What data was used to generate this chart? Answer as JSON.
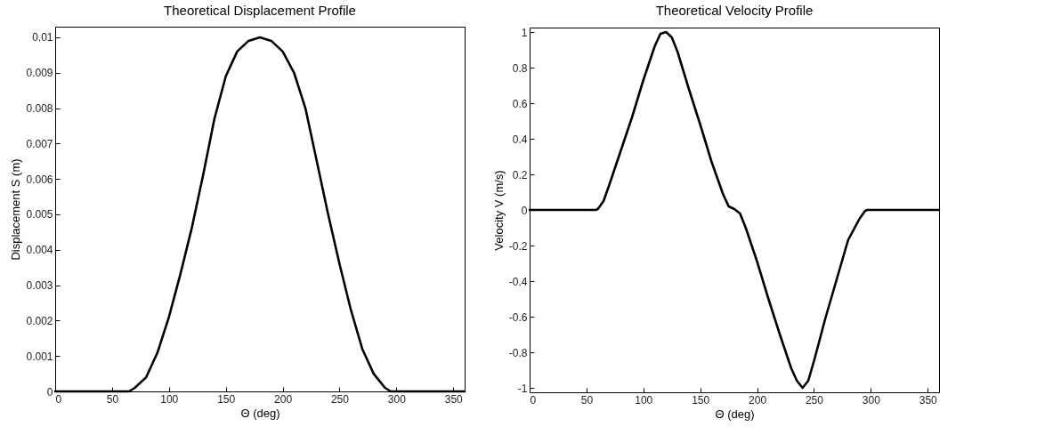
{
  "chart_data": [
    {
      "type": "line",
      "title": "Theoretical Displacement Profile",
      "xlabel": "Θ (deg)",
      "ylabel": "Displacement S (m)",
      "x": [
        0,
        20,
        40,
        60,
        65,
        70,
        80,
        90,
        100,
        110,
        120,
        130,
        140,
        150,
        160,
        170,
        180,
        190,
        200,
        210,
        220,
        230,
        240,
        250,
        260,
        270,
        280,
        290,
        295,
        300,
        320,
        340,
        360
      ],
      "series": [
        {
          "color": "#000000",
          "values": [
            0,
            0,
            0,
            0,
            0,
            0.0001,
            0.0004,
            0.0011,
            0.0021,
            0.0033,
            0.0046,
            0.0061,
            0.0077,
            0.0089,
            0.0096,
            0.0099,
            0.01,
            0.0099,
            0.0096,
            0.009,
            0.008,
            0.0065,
            0.005,
            0.0036,
            0.0023,
            0.0012,
            0.0005,
            0.0001,
            0,
            0,
            0,
            0,
            0
          ]
        }
      ],
      "xlim": [
        0,
        360
      ],
      "ylim": [
        0,
        0.0103
      ],
      "xticks": [
        0,
        50,
        100,
        150,
        200,
        250,
        300,
        350
      ],
      "yticks": [
        0,
        0.001,
        0.002,
        0.003,
        0.004,
        0.005,
        0.006,
        0.007,
        0.008,
        0.009,
        0.01
      ],
      "line_style": "solid"
    },
    {
      "type": "line",
      "title": "Theoretical Velocity Profile",
      "xlabel": "Θ (deg)",
      "ylabel": "Velocity V (m/s)",
      "x": [
        0,
        20,
        40,
        58,
        60,
        65,
        70,
        80,
        90,
        100,
        110,
        115,
        120,
        125,
        130,
        140,
        150,
        160,
        170,
        175,
        180,
        185,
        190,
        200,
        210,
        220,
        230,
        235,
        240,
        245,
        250,
        260,
        270,
        280,
        290,
        295,
        297,
        320,
        340,
        360
      ],
      "series": [
        {
          "color": "#000000",
          "values": [
            0,
            0,
            0,
            0,
            0.005,
            0.05,
            0.14,
            0.33,
            0.52,
            0.73,
            0.92,
            0.99,
            1,
            0.97,
            0.89,
            0.68,
            0.48,
            0.27,
            0.09,
            0.02,
            0.005,
            -0.02,
            -0.1,
            -0.29,
            -0.5,
            -0.7,
            -0.89,
            -0.96,
            -1,
            -0.96,
            -0.85,
            -0.61,
            -0.39,
            -0.17,
            -0.05,
            -0.005,
            0,
            0,
            0,
            0
          ]
        }
      ],
      "xlim": [
        0,
        360
      ],
      "ylim": [
        -1.025,
        1.025
      ],
      "xticks": [
        0,
        50,
        100,
        150,
        200,
        250,
        300,
        350
      ],
      "yticks": [
        -1,
        -0.8,
        -0.6,
        -0.4,
        -0.2,
        0,
        0.2,
        0.4,
        0.6,
        0.8,
        1
      ],
      "line_style": "solid"
    }
  ]
}
